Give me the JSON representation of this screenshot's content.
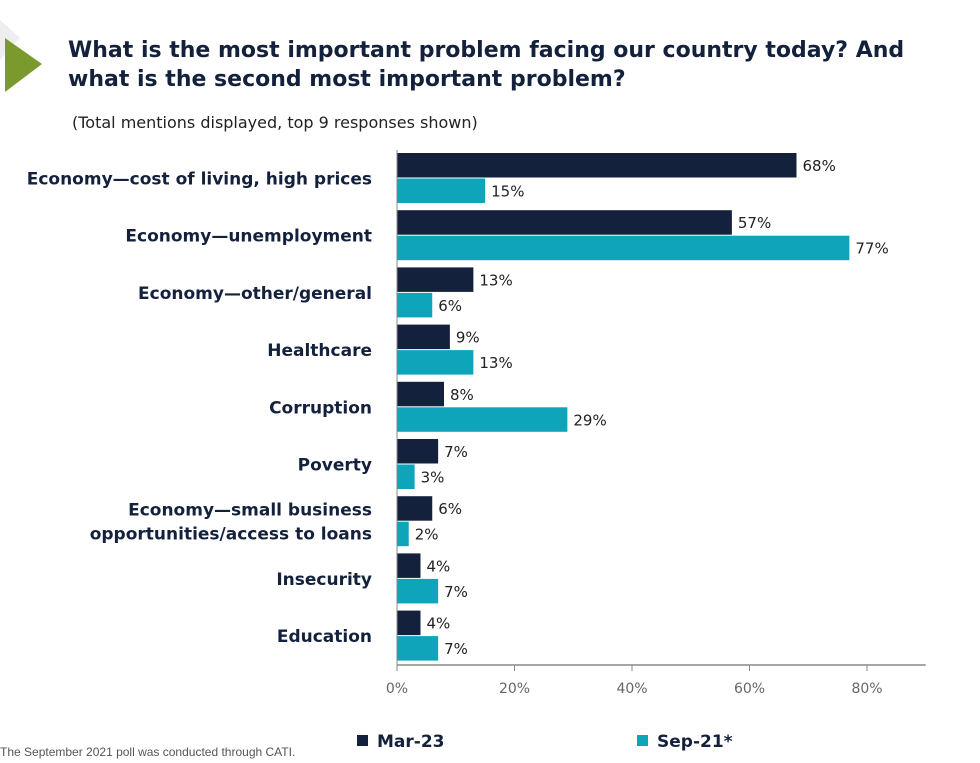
{
  "chart_data": {
    "type": "bar",
    "orientation": "horizontal",
    "title": "What is the most important problem facing our country today? And what is the second most important problem?",
    "subtitle": "(Total mentions displayed, top 9 responses shown)",
    "categories": [
      [
        "Economy—cost of living, high prices"
      ],
      [
        "Economy—unemployment"
      ],
      [
        "Economy—other/general"
      ],
      [
        "Healthcare"
      ],
      [
        "Corruption"
      ],
      [
        "Poverty"
      ],
      [
        "Economy—small business",
        "opportunities/access to loans"
      ],
      [
        "Insecurity"
      ],
      [
        "Education"
      ]
    ],
    "series": [
      {
        "name": "Mar-23",
        "color": "#14213d",
        "values": [
          68,
          57,
          13,
          9,
          8,
          7,
          6,
          4,
          4
        ]
      },
      {
        "name": "Sep-21*",
        "color": "#0ea5bb",
        "values": [
          15,
          77,
          6,
          13,
          29,
          3,
          2,
          7,
          7
        ]
      }
    ],
    "xlim": [
      0,
      90
    ],
    "xticks": [
      0,
      20,
      40,
      60,
      80
    ],
    "tick_labels": [
      "0%",
      "20%",
      "40%",
      "60%",
      "80%"
    ],
    "value_suffix": "%",
    "grid": false,
    "legend_position": "bottom"
  },
  "footnote": "The September 2021 poll was conducted through CATI.",
  "logo_color": "#7a9a2e"
}
